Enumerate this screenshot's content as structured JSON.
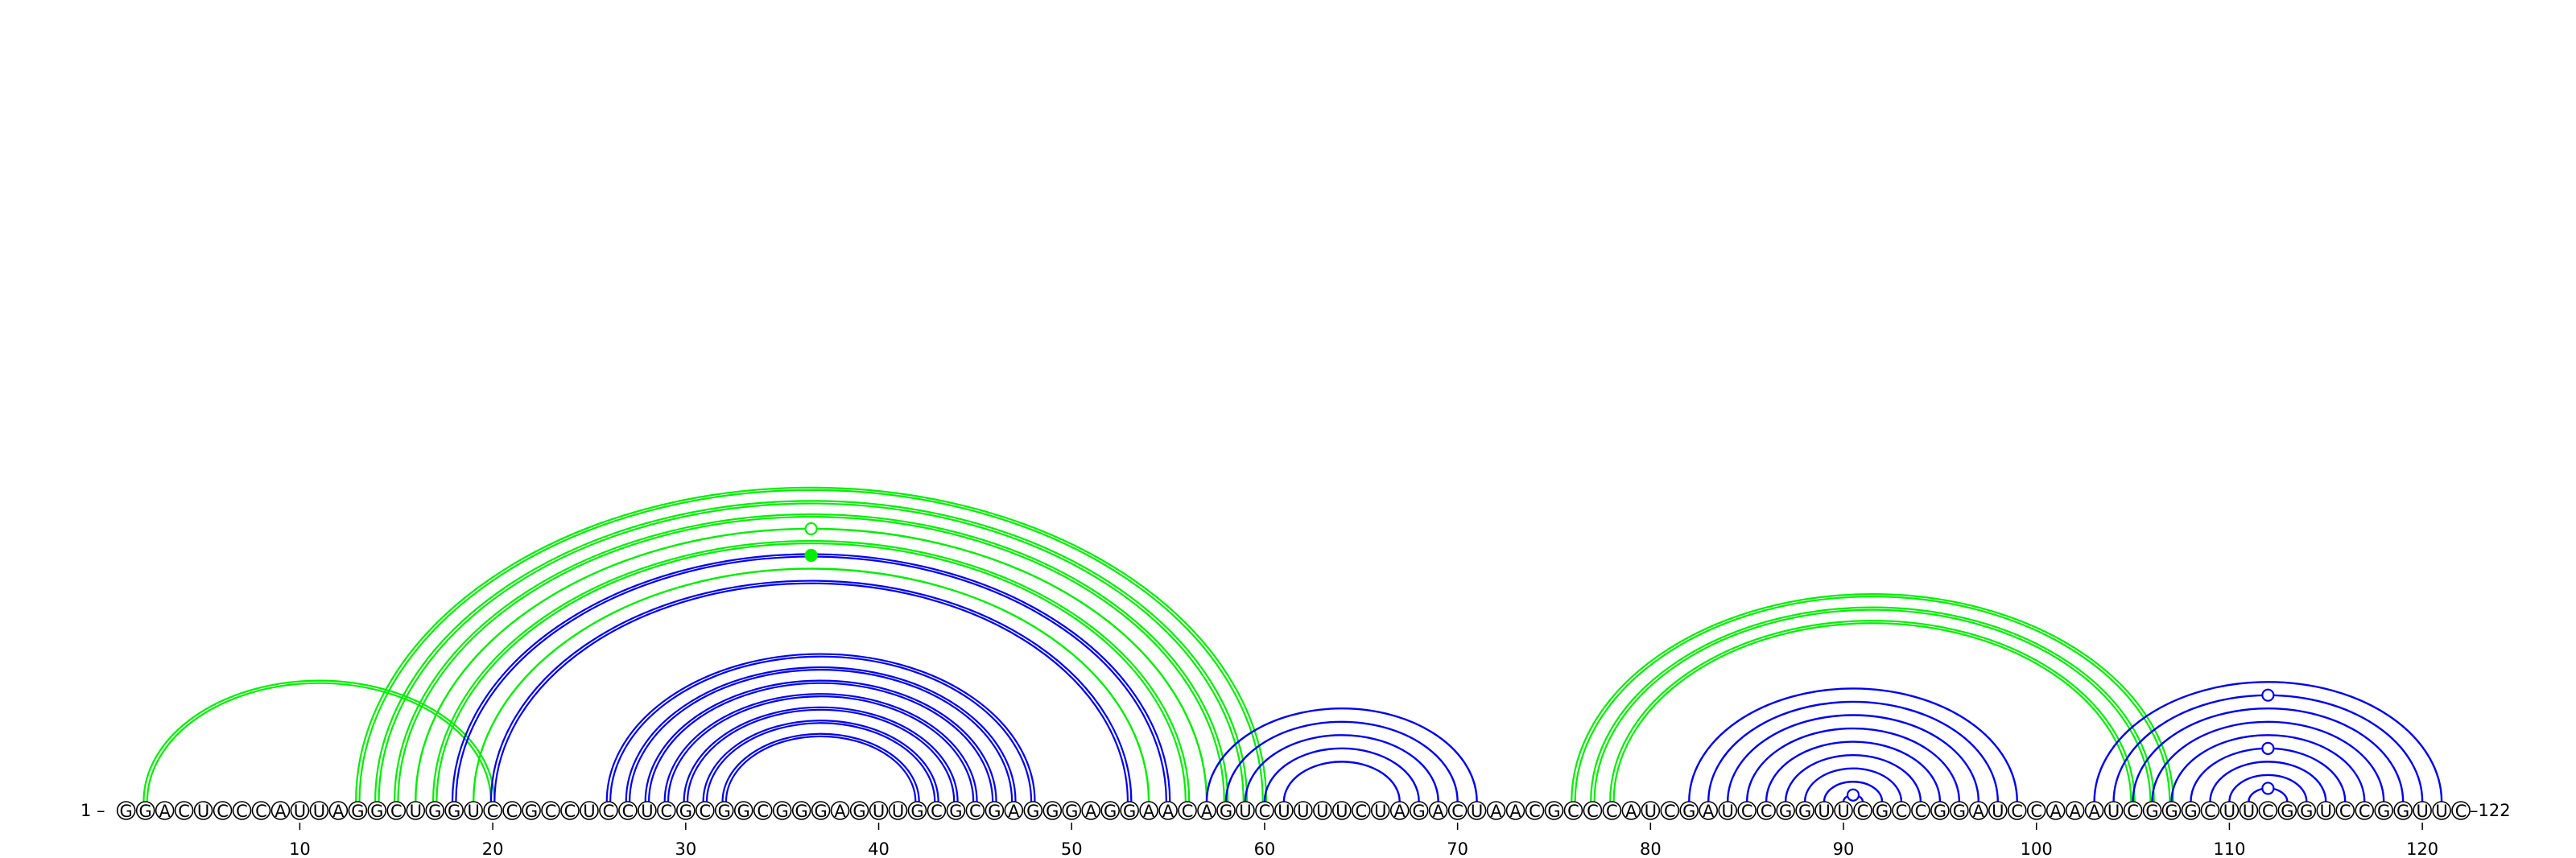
{
  "sequence": "GGACUCCCAUUAGGCUGGUCCGCCUCCUCGCGGCGGGAGUUGCGCGAGGGAGGAACAGUCUUUUCUAGACUAACGCCCAUCGAUCCGGUUCGCCGGAUCCAAAUCGGGCUUCGGUCCGGUUC",
  "start_label": "1 –",
  "end_label": "–122",
  "tick_labels": [
    "10",
    "20",
    "30",
    "40",
    "50",
    "60",
    "70",
    "80",
    "90",
    "100",
    "110",
    "120"
  ],
  "colors": {
    "blue": "#0000ee",
    "green": "#00ee00",
    "base_outline": "#000000"
  },
  "arc_groups": [
    {
      "color": "green",
      "style": "double",
      "pairs": [
        [
          2,
          20
        ]
      ]
    },
    {
      "color": "green",
      "style": "double",
      "pairs": [
        [
          13,
          60
        ],
        [
          14,
          59
        ],
        [
          15,
          58
        ]
      ]
    },
    {
      "color": "green",
      "style": "single",
      "pairs": [
        [
          16,
          57
        ]
      ],
      "marker": "open"
    },
    {
      "color": "green",
      "style": "double",
      "pairs": [
        [
          17,
          56
        ]
      ]
    },
    {
      "color": "blue",
      "style": "double",
      "pairs": [
        [
          18,
          55
        ]
      ],
      "marker": "filled-green"
    },
    {
      "color": "green",
      "style": "single",
      "pairs": [
        [
          19,
          54
        ]
      ]
    },
    {
      "color": "blue",
      "style": "double",
      "pairs": [
        [
          20,
          53
        ]
      ]
    },
    {
      "color": "blue",
      "style": "double",
      "pairs": [
        [
          26,
          48
        ],
        [
          27,
          47
        ],
        [
          28,
          46
        ],
        [
          29,
          45
        ],
        [
          30,
          44
        ],
        [
          31,
          43
        ],
        [
          32,
          42
        ]
      ]
    },
    {
      "color": "blue",
      "style": "single",
      "pairs": [
        [
          57,
          71
        ],
        [
          58,
          70
        ],
        [
          59,
          69
        ],
        [
          60,
          68
        ],
        [
          61,
          67
        ]
      ]
    },
    {
      "color": "green",
      "style": "double",
      "pairs": [
        [
          76,
          107
        ],
        [
          77,
          106
        ],
        [
          78,
          105
        ]
      ]
    },
    {
      "color": "blue",
      "style": "single",
      "pairs": [
        [
          82,
          99
        ],
        [
          83,
          98
        ],
        [
          84,
          97
        ],
        [
          85,
          96
        ],
        [
          86,
          95
        ],
        [
          87,
          94
        ],
        [
          88,
          93
        ],
        [
          89,
          92
        ],
        [
          90,
          91
        ]
      ],
      "marker_index": 8
    },
    {
      "color": "blue",
      "style": "single",
      "pairs": [
        [
          103,
          121
        ],
        [
          104,
          120
        ],
        [
          105,
          119
        ],
        [
          106,
          118
        ],
        [
          107,
          117
        ],
        [
          108,
          116
        ],
        [
          109,
          115
        ],
        [
          110,
          114
        ],
        [
          111,
          113
        ]
      ],
      "marker_indices": [
        1,
        5,
        8
      ]
    }
  ]
}
